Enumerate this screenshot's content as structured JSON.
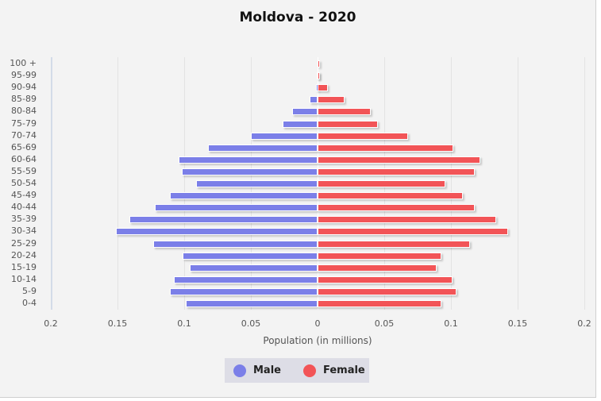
{
  "title": "Moldova - 2020",
  "x_axis": {
    "label": "Population (in millions)",
    "ticks": [
      "0.2",
      "0.15",
      "0.1",
      "0.05",
      "0",
      "0.05",
      "0.1",
      "0.15",
      "0.2"
    ]
  },
  "legend": {
    "male_label": "Male",
    "female_label": "Female",
    "male_color": "#7b7fe8",
    "female_color": "#f25457"
  },
  "chart_data": {
    "type": "bar",
    "subtype": "population-pyramid",
    "title": "Moldova - 2020",
    "xlabel": "Population (in millions)",
    "ylabel": "",
    "xlim": [
      -0.2,
      0.2
    ],
    "grid": true,
    "legend_position": "bottom",
    "categories": [
      "100 +",
      "95-99",
      "90-94",
      "85-89",
      "80-84",
      "75-79",
      "70-74",
      "65-69",
      "60-64",
      "55-59",
      "50-54",
      "45-49",
      "40-44",
      "35-39",
      "30-34",
      "25-29",
      "20-24",
      "15-19",
      "10-14",
      "5-9",
      "0-4"
    ],
    "series": [
      {
        "name": "Male",
        "color": "#7b7fe8",
        "values": [
          0.0,
          0.0003,
          0.001,
          0.006,
          0.019,
          0.026,
          0.05,
          0.082,
          0.104,
          0.102,
          0.091,
          0.111,
          0.122,
          0.141,
          0.151,
          0.123,
          0.101,
          0.096,
          0.108,
          0.111,
          0.099
        ]
      },
      {
        "name": "Female",
        "color": "#f25457",
        "values": [
          0.0002,
          0.001,
          0.008,
          0.02,
          0.04,
          0.045,
          0.068,
          0.102,
          0.122,
          0.118,
          0.096,
          0.109,
          0.118,
          0.134,
          0.143,
          0.114,
          0.093,
          0.089,
          0.101,
          0.104,
          0.093
        ]
      }
    ]
  }
}
